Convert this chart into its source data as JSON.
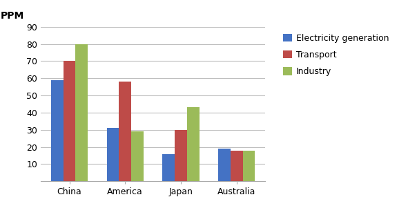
{
  "categories": [
    "China",
    "America",
    "Japan",
    "Australia"
  ],
  "series": {
    "Electricity generation": [
      59,
      31,
      16,
      19
    ],
    "Transport": [
      70,
      58,
      30,
      18
    ],
    "Industry": [
      80,
      29,
      43,
      18
    ]
  },
  "colors": {
    "Electricity generation": "#4472C4",
    "Transport": "#BE4B48",
    "Industry": "#9BBB59"
  },
  "ylabel": "PPM",
  "ylim": [
    0,
    90
  ],
  "yticks": [
    0,
    10,
    20,
    30,
    40,
    50,
    60,
    70,
    80,
    90
  ],
  "bar_width": 0.22,
  "background_color": "#FFFFFF",
  "grid_color": "#BEBEBE",
  "legend_fontsize": 9
}
